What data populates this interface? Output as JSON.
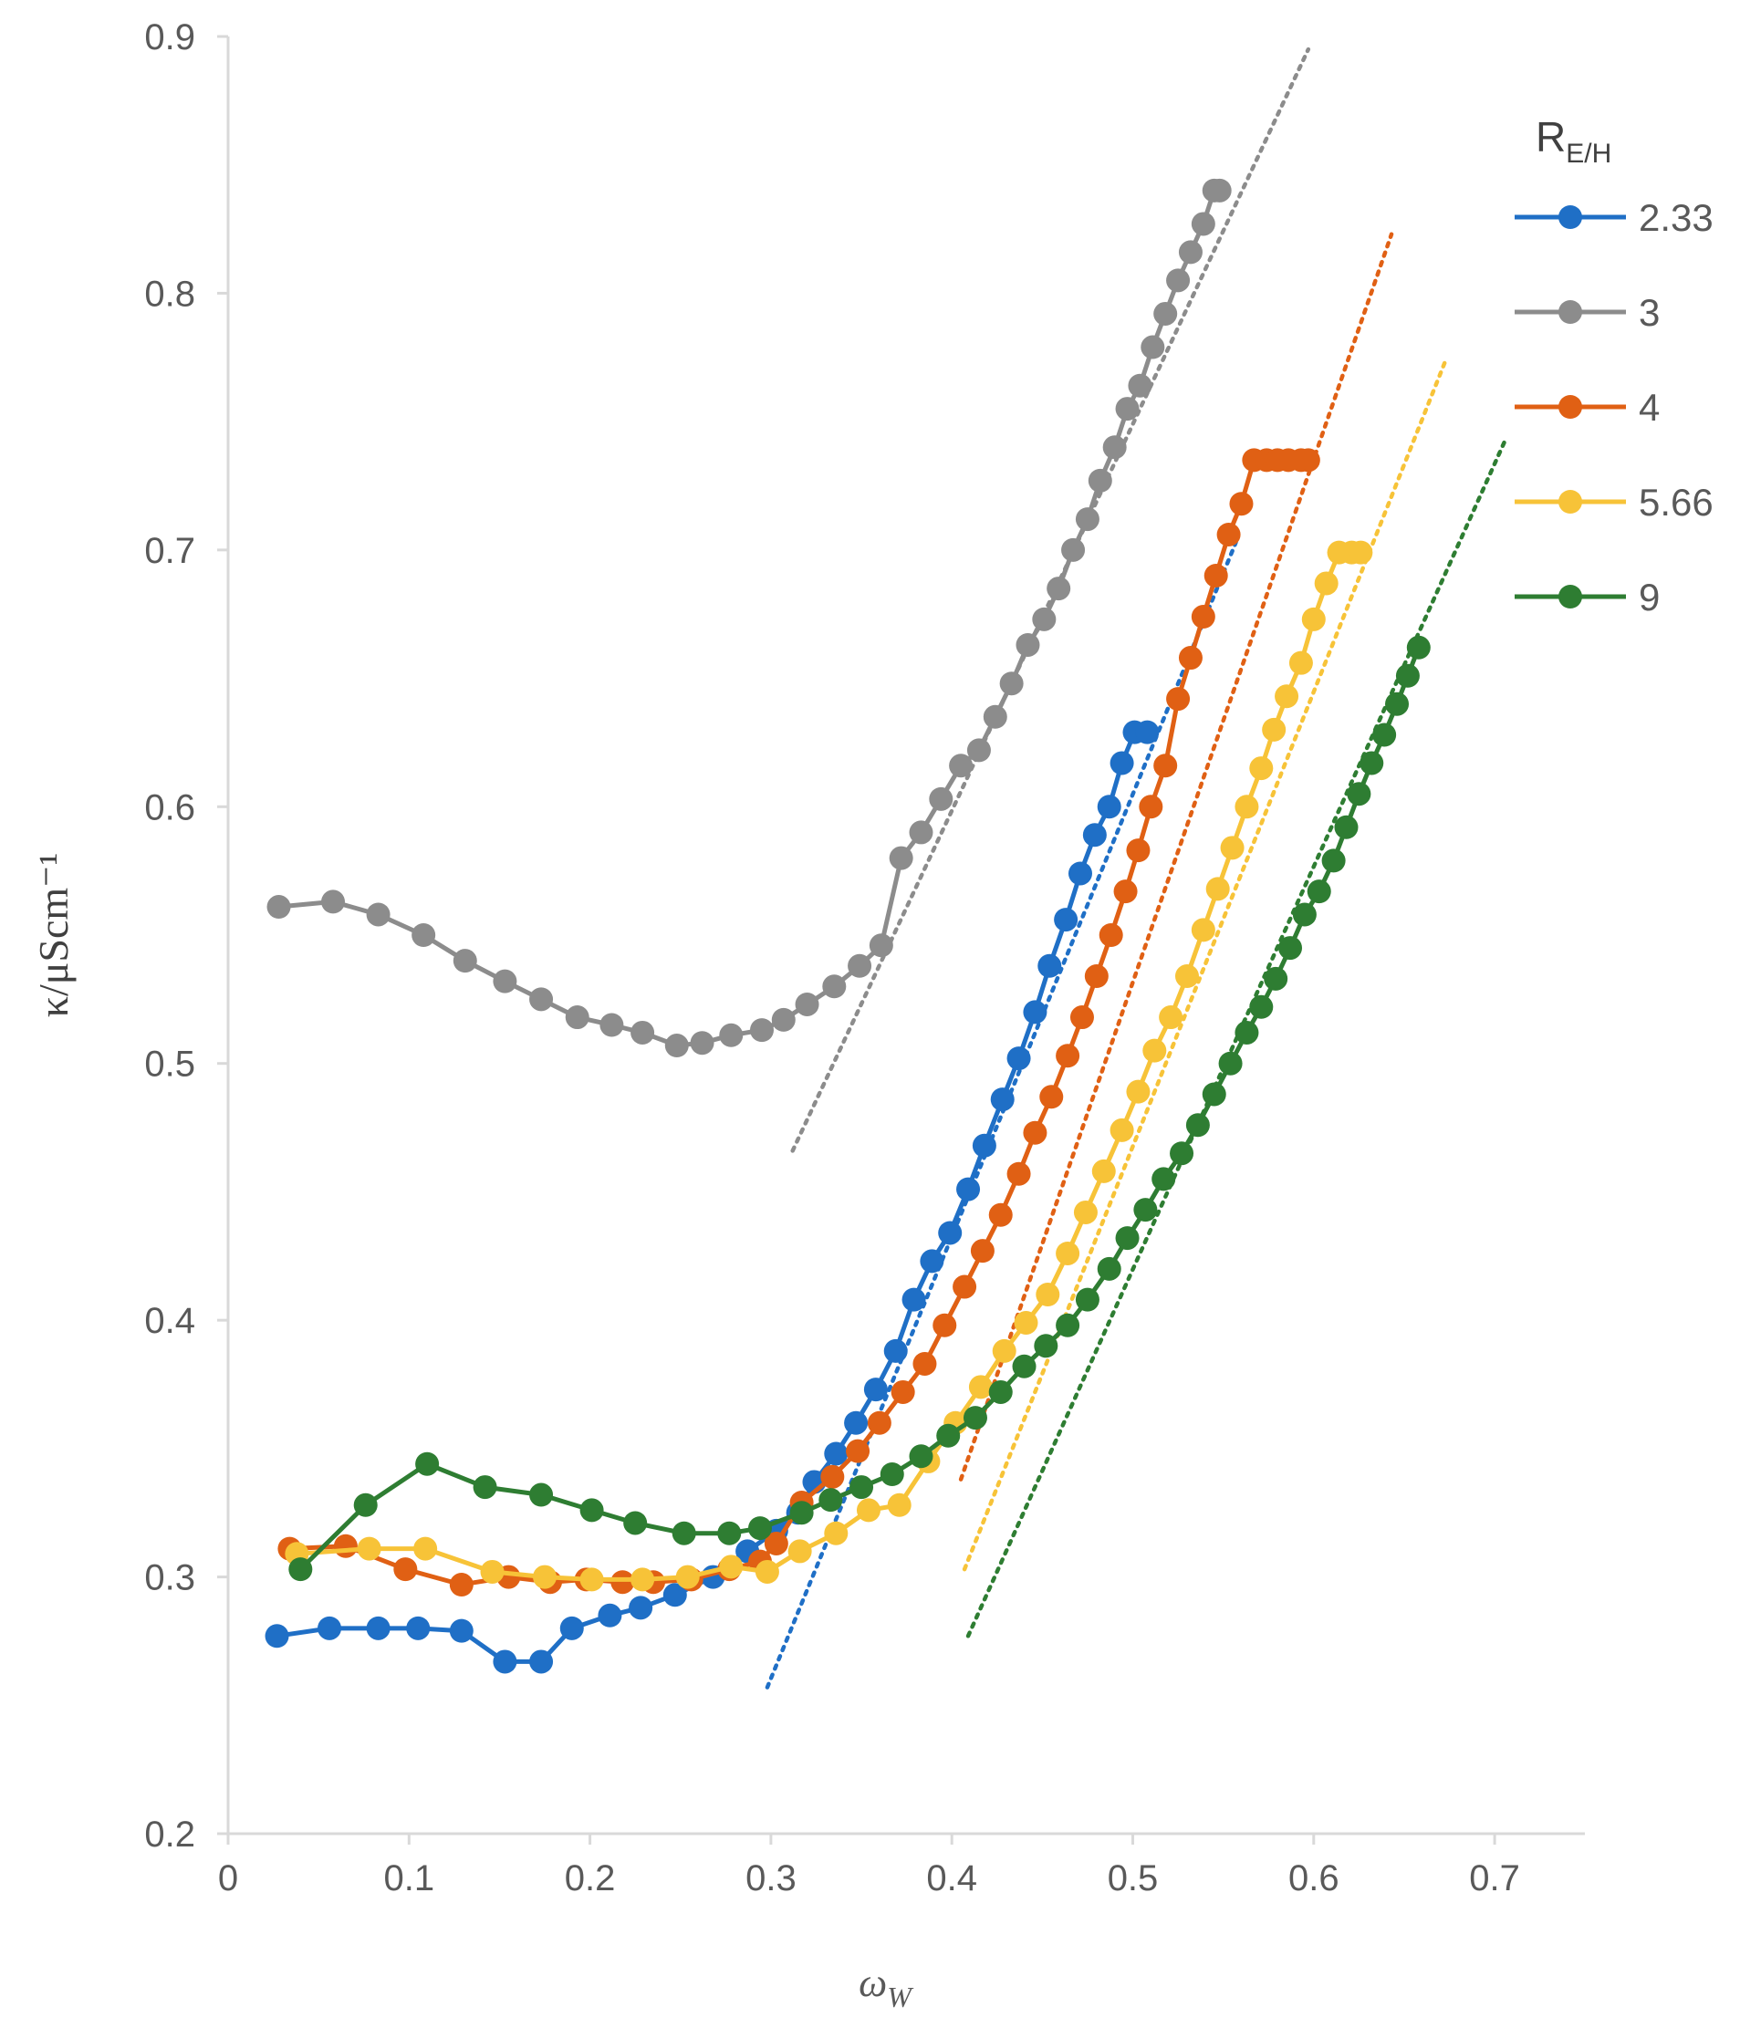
{
  "chart_data": {
    "type": "line",
    "title": "",
    "xlabel": "ω",
    "xlabel_sub": "W",
    "ylabel": "κ/μScm⁻¹",
    "xlim": [
      0,
      0.75
    ],
    "ylim": [
      0.2,
      0.9
    ],
    "x_ticks": [
      "0",
      "0.1",
      "0.2",
      "0.3",
      "0.4",
      "0.5",
      "0.6",
      "0.7"
    ],
    "y_ticks": [
      "0.2",
      "0.3",
      "0.4",
      "0.5",
      "0.6",
      "0.7",
      "0.8",
      "0.9"
    ],
    "grid": false,
    "legend": {
      "title_main": "R",
      "title_sub": "E/H",
      "placement": "top-right"
    },
    "series": [
      {
        "name": "2.33",
        "color": "#1f6fc6",
        "x": [
          0.027,
          0.056,
          0.083,
          0.105,
          0.129,
          0.153,
          0.173,
          0.19,
          0.211,
          0.228,
          0.247,
          0.268,
          0.287,
          0.303,
          0.315,
          0.324,
          0.336,
          0.347,
          0.358,
          0.369,
          0.379,
          0.389,
          0.399,
          0.409,
          0.418,
          0.428,
          0.437,
          0.446,
          0.454,
          0.463,
          0.471,
          0.479,
          0.487,
          0.494,
          0.501,
          0.508
        ],
        "y": [
          0.277,
          0.28,
          0.28,
          0.28,
          0.279,
          0.267,
          0.267,
          0.28,
          0.285,
          0.288,
          0.293,
          0.3,
          0.31,
          0.318,
          0.325,
          0.337,
          0.348,
          0.36,
          0.373,
          0.388,
          0.408,
          0.423,
          0.434,
          0.451,
          0.468,
          0.486,
          0.502,
          0.52,
          0.538,
          0.556,
          0.574,
          0.589,
          0.6,
          0.617,
          0.629,
          0.629
        ],
        "trend": [
          [
            0.298,
            0.257
          ],
          [
            0.557,
            0.703
          ]
        ]
      },
      {
        "name": "3",
        "color": "#8c8c8c",
        "x": [
          0.028,
          0.058,
          0.083,
          0.108,
          0.131,
          0.153,
          0.173,
          0.193,
          0.212,
          0.229,
          0.248,
          0.262,
          0.278,
          0.295,
          0.307,
          0.32,
          0.335,
          0.349,
          0.361,
          0.372,
          0.383,
          0.394,
          0.405,
          0.415,
          0.424,
          0.433,
          0.442,
          0.451,
          0.459,
          0.467,
          0.475,
          0.482,
          0.49,
          0.497,
          0.504,
          0.511,
          0.518,
          0.525,
          0.532,
          0.539,
          0.545,
          0.548
        ],
        "y": [
          0.561,
          0.563,
          0.558,
          0.55,
          0.54,
          0.532,
          0.525,
          0.518,
          0.515,
          0.512,
          0.507,
          0.508,
          0.511,
          0.513,
          0.517,
          0.523,
          0.53,
          0.538,
          0.546,
          0.58,
          0.59,
          0.603,
          0.616,
          0.622,
          0.635,
          0.648,
          0.663,
          0.673,
          0.685,
          0.7,
          0.712,
          0.727,
          0.74,
          0.755,
          0.764,
          0.779,
          0.792,
          0.805,
          0.816,
          0.827,
          0.84,
          0.84
        ],
        "trend": [
          [
            0.312,
            0.466
          ],
          [
            0.597,
            0.895
          ]
        ]
      },
      {
        "name": "4",
        "color": "#e06014",
        "x": [
          0.034,
          0.065,
          0.098,
          0.129,
          0.155,
          0.178,
          0.198,
          0.218,
          0.235,
          0.256,
          0.277,
          0.294,
          0.303,
          0.317,
          0.334,
          0.348,
          0.36,
          0.373,
          0.385,
          0.396,
          0.407,
          0.417,
          0.427,
          0.437,
          0.446,
          0.455,
          0.464,
          0.472,
          0.48,
          0.488,
          0.496,
          0.503,
          0.51,
          0.518,
          0.525,
          0.532,
          0.539,
          0.546,
          0.553,
          0.56,
          0.567,
          0.574,
          0.58,
          0.586,
          0.593,
          0.597
        ],
        "y": [
          0.311,
          0.312,
          0.303,
          0.297,
          0.3,
          0.298,
          0.299,
          0.298,
          0.298,
          0.299,
          0.303,
          0.306,
          0.313,
          0.329,
          0.339,
          0.349,
          0.36,
          0.372,
          0.383,
          0.398,
          0.413,
          0.427,
          0.441,
          0.457,
          0.473,
          0.487,
          0.503,
          0.518,
          0.534,
          0.55,
          0.567,
          0.583,
          0.6,
          0.616,
          0.642,
          0.658,
          0.674,
          0.69,
          0.706,
          0.718,
          0.735,
          0.735,
          0.735,
          0.735,
          0.735,
          0.735
        ],
        "trend": [
          [
            0.405,
            0.338
          ],
          [
            0.643,
            0.823
          ]
        ]
      },
      {
        "name": "5.66",
        "color": "#f7c338",
        "x": [
          0.038,
          0.078,
          0.109,
          0.146,
          0.175,
          0.201,
          0.229,
          0.254,
          0.278,
          0.298,
          0.316,
          0.336,
          0.354,
          0.371,
          0.387,
          0.402,
          0.416,
          0.429,
          0.441,
          0.453,
          0.464,
          0.474,
          0.484,
          0.494,
          0.503,
          0.512,
          0.521,
          0.53,
          0.539,
          0.547,
          0.555,
          0.563,
          0.571,
          0.578,
          0.585,
          0.593,
          0.6,
          0.607,
          0.614,
          0.621,
          0.626
        ],
        "y": [
          0.309,
          0.311,
          0.311,
          0.302,
          0.3,
          0.299,
          0.299,
          0.3,
          0.304,
          0.302,
          0.31,
          0.317,
          0.326,
          0.328,
          0.345,
          0.36,
          0.374,
          0.388,
          0.399,
          0.41,
          0.426,
          0.442,
          0.458,
          0.474,
          0.489,
          0.505,
          0.518,
          0.534,
          0.552,
          0.568,
          0.584,
          0.6,
          0.615,
          0.63,
          0.643,
          0.656,
          0.673,
          0.687,
          0.699,
          0.699,
          0.699
        ],
        "trend": [
          [
            0.407,
            0.303
          ],
          [
            0.673,
            0.774
          ]
        ]
      },
      {
        "name": "9",
        "color": "#2e7d32",
        "x": [
          0.04,
          0.076,
          0.11,
          0.142,
          0.173,
          0.201,
          0.225,
          0.252,
          0.277,
          0.294,
          0.317,
          0.333,
          0.35,
          0.367,
          0.383,
          0.398,
          0.413,
          0.427,
          0.44,
          0.452,
          0.464,
          0.475,
          0.487,
          0.497,
          0.507,
          0.517,
          0.527,
          0.536,
          0.545,
          0.554,
          0.563,
          0.571,
          0.579,
          0.587,
          0.595,
          0.603,
          0.611,
          0.618,
          0.625,
          0.632,
          0.639,
          0.646,
          0.652,
          0.658
        ],
        "y": [
          0.303,
          0.328,
          0.344,
          0.335,
          0.332,
          0.326,
          0.321,
          0.317,
          0.317,
          0.319,
          0.325,
          0.33,
          0.335,
          0.34,
          0.347,
          0.355,
          0.362,
          0.372,
          0.382,
          0.39,
          0.398,
          0.408,
          0.42,
          0.432,
          0.443,
          0.455,
          0.465,
          0.476,
          0.488,
          0.5,
          0.512,
          0.522,
          0.533,
          0.545,
          0.558,
          0.567,
          0.579,
          0.592,
          0.605,
          0.617,
          0.628,
          0.64,
          0.651,
          0.662
        ],
        "trend": [
          [
            0.409,
            0.277
          ],
          [
            0.706,
            0.743
          ]
        ]
      }
    ]
  }
}
